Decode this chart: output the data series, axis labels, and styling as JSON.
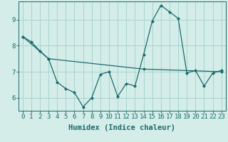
{
  "xlabel": "Humidex (Indice chaleur)",
  "bg_color": "#d4ede9",
  "grid_color": "#a8d4ce",
  "line_color": "#1a6b6b",
  "xlim": [
    -0.5,
    23.5
  ],
  "ylim": [
    5.5,
    9.7
  ],
  "xticks": [
    0,
    1,
    2,
    3,
    4,
    5,
    6,
    7,
    8,
    9,
    10,
    11,
    12,
    13,
    14,
    15,
    16,
    17,
    18,
    19,
    20,
    21,
    22,
    23
  ],
  "yticks": [
    6,
    7,
    8,
    9
  ],
  "zigzag_x": [
    0,
    1,
    2,
    3,
    4,
    5,
    6,
    7,
    8,
    9,
    10,
    11,
    12,
    13,
    14,
    15,
    16,
    17,
    18,
    19,
    20,
    21,
    22,
    23
  ],
  "zigzag_y": [
    8.35,
    8.15,
    7.8,
    7.5,
    6.6,
    6.35,
    6.2,
    5.65,
    6.0,
    6.9,
    7.0,
    6.05,
    6.55,
    6.45,
    7.65,
    8.95,
    9.55,
    9.3,
    9.05,
    6.95,
    7.05,
    6.45,
    6.95,
    7.05
  ],
  "trend_x": [
    0,
    3,
    14,
    23
  ],
  "trend_y": [
    8.35,
    7.5,
    7.1,
    7.0
  ],
  "font_family": "monospace",
  "tick_fontsize": 6.5,
  "label_fontsize": 7.5
}
